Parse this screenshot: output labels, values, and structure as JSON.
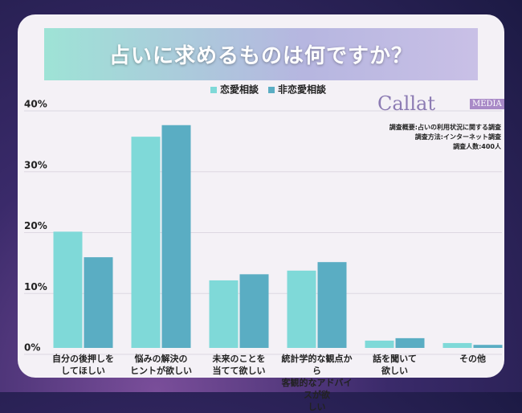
{
  "header": {
    "title": "占いに求めるものは何ですか？",
    "logo": "Callat",
    "logo_tag": "MEDIA",
    "notes": [
      "調査概要:占いの利用状況に関する調査",
      "調査方法:インターネット調査",
      "調査人数:400人"
    ]
  },
  "chart_data": {
    "type": "bar",
    "categories": [
      "自分の後押しを\nしてほしい",
      "悩みの解決の\nヒントが欲しい",
      "未来のことを\n当てて欲しい",
      "統計学的な観点から\n客観的なアドバイスが欲\nしい",
      "話を聞いて\n欲しい",
      "その他"
    ],
    "series": [
      {
        "name": "恋愛相談",
        "color": "#7fd9d8",
        "values": [
          19.1,
          34.7,
          11.1,
          12.7,
          1.2,
          0.8
        ]
      },
      {
        "name": "非恋愛相談",
        "color": "#5aadc3",
        "values": [
          14.9,
          36.6,
          12.1,
          14.1,
          1.6,
          0.5
        ]
      }
    ],
    "ylim": [
      0,
      40
    ],
    "yticks": [
      {
        "value": 0,
        "label": "0%"
      },
      {
        "value": 10,
        "label": "10%"
      },
      {
        "value": 20,
        "label": "20%"
      },
      {
        "value": 30,
        "label": "30%"
      },
      {
        "value": 40,
        "label": "40%"
      }
    ],
    "grid": true
  }
}
